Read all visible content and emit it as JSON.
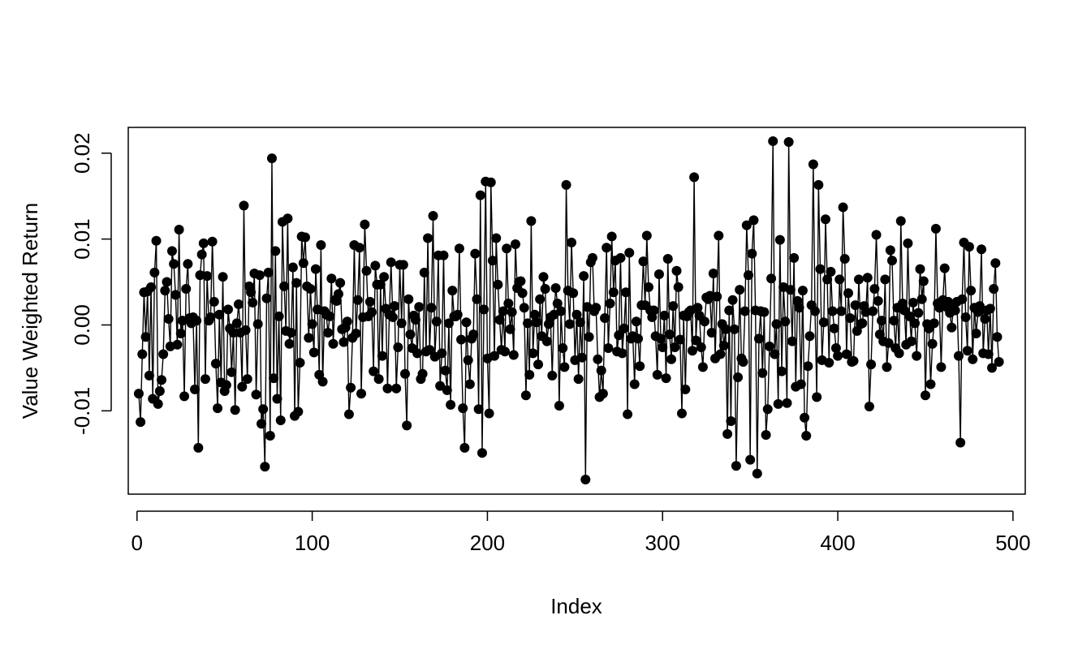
{
  "chart_data": {
    "type": "line",
    "style": "points-and-lines",
    "title": "",
    "xlabel": "Index",
    "ylabel": "Value Weighted Return",
    "xlim": [
      -5,
      507
    ],
    "ylim": [
      -0.0197,
      0.023
    ],
    "xticks": [
      {
        "value": 0,
        "label": "0"
      },
      {
        "value": 100,
        "label": "100"
      },
      {
        "value": 200,
        "label": "200"
      },
      {
        "value": 300,
        "label": "300"
      },
      {
        "value": 400,
        "label": "400"
      },
      {
        "value": 500,
        "label": "500"
      }
    ],
    "yticks": [
      {
        "value": -0.01,
        "label": "-0.01"
      },
      {
        "value": 0.0,
        "label": "0.00"
      },
      {
        "value": 0.01,
        "label": "0.01"
      },
      {
        "value": 0.02,
        "label": "0.02"
      }
    ],
    "grid": false,
    "legend": "none",
    "n_points": 502,
    "series": [
      {
        "marker": "filled-circle",
        "color": "#000000",
        "values": [
          -0.008,
          -0.0113,
          -0.0034,
          0.0038,
          -0.0014,
          0.0039,
          -0.0059,
          0.0044,
          -0.0086,
          0.0061,
          0.0098,
          -0.0092,
          -0.0077,
          -0.0064,
          -0.0034,
          0.004,
          0.005,
          0.0007,
          -0.0025,
          0.0086,
          0.0071,
          0.0035,
          -0.0023,
          0.0111,
          -0.001,
          0.0005,
          -0.0083,
          0.0042,
          0.0071,
          0.0008,
          0.0002,
          0.0009,
          -0.0075,
          0.0005,
          -0.0143,
          0.0058,
          0.0082,
          0.0095,
          -0.0063,
          0.0057,
          0.0005,
          0.0009,
          0.0097,
          0.0027,
          -0.0045,
          -0.0097,
          0.0012,
          -0.0067,
          0.0056,
          -0.0077,
          -0.007,
          0.0018,
          -0.0004,
          -0.0055,
          -0.0009,
          -0.0099,
          0.0002,
          0.0024,
          -0.0009,
          -0.0072,
          0.0139,
          -0.0006,
          -0.0063,
          0.0045,
          0.0038,
          0.0026,
          0.006,
          -0.0081,
          0.0001,
          0.0058,
          -0.0115,
          -0.0098,
          -0.0165,
          0.0031,
          0.0061,
          -0.0129,
          0.0194,
          -0.0062,
          0.0086,
          -0.0086,
          0.001,
          -0.0111,
          0.012,
          0.0045,
          -0.0007,
          0.0124,
          -0.0022,
          -0.0009,
          0.0067,
          -0.0106,
          0.0049,
          -0.0101,
          -0.0044,
          0.0103,
          0.0072,
          0.0102,
          0.0045,
          -0.0015,
          0.0042,
          0.0001,
          -0.0032,
          0.0065,
          0.0018,
          -0.0058,
          0.0093,
          -0.0066,
          0.0016,
          0.0012,
          -0.0009,
          0.001,
          0.0054,
          -0.0022,
          0.0029,
          0.0028,
          0.0036,
          0.0049,
          -0.0005,
          -0.002,
          -0.0003,
          0.0004,
          -0.0104,
          -0.0073,
          -0.0015,
          0.0093,
          -0.001,
          0.0029,
          0.009,
          -0.008,
          0.0009,
          0.0117,
          0.0063,
          0.001,
          0.0027,
          0.0015,
          -0.0054,
          0.0069,
          0.0047,
          -0.0063,
          0.0047,
          -0.0036,
          0.0056,
          0.0019,
          -0.0074,
          0.0012,
          0.0073,
          0.0009,
          0.0022,
          -0.0074,
          -0.0026,
          0.007,
          0.0002,
          0.007,
          -0.0057,
          -0.0117,
          0.003,
          -0.0011,
          -0.0027,
          0.0011,
          0.0006,
          -0.0033,
          0.0021,
          -0.0063,
          -0.0057,
          0.0061,
          -0.0031,
          0.0101,
          -0.0029,
          0.002,
          0.0127,
          -0.0037,
          0.0004,
          0.0081,
          -0.0071,
          -0.0033,
          0.0081,
          -0.0053,
          -0.0076,
          0.0002,
          -0.0093,
          0.004,
          0.001,
          0.001,
          0.0012,
          0.0089,
          -0.0017,
          -0.0097,
          -0.0143,
          0.0003,
          -0.0041,
          -0.0069,
          -0.0016,
          -0.0011,
          0.0083,
          0.003,
          -0.0098,
          0.0151,
          -0.0149,
          0.0018,
          0.0167,
          -0.0039,
          -0.0103,
          0.0166,
          0.0075,
          -0.0036,
          0.0101,
          0.0047,
          0.0006,
          -0.0029,
          0.0016,
          -0.0031,
          0.0089,
          0.0025,
          -0.0005,
          0.0015,
          -0.0035,
          0.0094,
          0.0043,
          0.005,
          0.0051,
          0.0037,
          0.002,
          -0.0082,
          0.0002,
          -0.0058,
          0.0121,
          -0.0033,
          0.0012,
          0.0003,
          -0.0046,
          0.003,
          -0.0013,
          0.0056,
          0.0042,
          -0.0019,
          0.0001,
          0.0009,
          -0.0059,
          0.0012,
          0.0043,
          0.0025,
          -0.0094,
          0.0016,
          -0.0027,
          -0.0049,
          0.0163,
          0.004,
          0.0001,
          0.0096,
          0.0037,
          -0.0041,
          0.0012,
          -0.0063,
          0.0003,
          -0.0038,
          0.0057,
          -0.018,
          0.0021,
          -0.0014,
          0.0073,
          0.0078,
          0.0016,
          0.002,
          -0.004,
          -0.0084,
          -0.0053,
          -0.008,
          0.0008,
          0.009,
          -0.0027,
          0.0025,
          0.0103,
          0.0038,
          0.0075,
          -0.0031,
          -0.0012,
          0.0078,
          -0.0033,
          -0.0004,
          0.0038,
          -0.0104,
          0.0084,
          -0.0016,
          -0.0013,
          -0.0069,
          0.0004,
          -0.0016,
          -0.0048,
          0.0023,
          0.0074,
          0.0023,
          0.0104,
          0.0044,
          0.0017,
          0.0009,
          0.0017,
          -0.0013,
          -0.0058,
          0.0059,
          -0.0016,
          -0.0026,
          0.0011,
          -0.0062,
          0.0077,
          -0.0011,
          -0.004,
          0.0022,
          -0.0026,
          0.0063,
          0.0044,
          -0.0017,
          -0.0103,
          0.0011,
          -0.0075,
          0.001,
          0.0015,
          0.0017,
          -0.003,
          0.0172,
          -0.0018,
          0.002,
          0.0011,
          -0.0026,
          -0.0049,
          0.0004,
          0.0032,
          0.003,
          0.0034,
          -0.0009,
          0.006,
          -0.0039,
          0.0033,
          0.0104,
          -0.0034,
          0.0001,
          -0.0024,
          -0.0005,
          -0.0127,
          0.0017,
          -0.0112,
          0.0029,
          -0.0005,
          -0.0164,
          -0.0061,
          0.0041,
          -0.0039,
          -0.0043,
          0.0016,
          0.0116,
          0.0058,
          -0.0157,
          0.0083,
          0.0122,
          0.0017,
          -0.0173,
          -0.0016,
          0.0016,
          -0.0056,
          0.0015,
          -0.0128,
          -0.0098,
          -0.0025,
          0.0054,
          0.0214,
          -0.0034,
          0.0001,
          -0.0092,
          0.0099,
          -0.0054,
          0.0044,
          0.0004,
          -0.0091,
          0.0213,
          0.0041,
          -0.0019,
          0.0078,
          -0.0072,
          0.0028,
          0.002,
          -0.0069,
          0.004,
          -0.0108,
          -0.0129,
          -0.0048,
          -0.0013,
          0.0023,
          0.0187,
          0.0016,
          -0.0084,
          0.0163,
          0.0065,
          -0.0041,
          0.0003,
          0.0123,
          0.0053,
          -0.0044,
          0.0062,
          0.0016,
          -0.0004,
          -0.0027,
          -0.0036,
          0.0053,
          0.0016,
          0.0137,
          0.0077,
          -0.0034,
          0.0037,
          0.0008,
          -0.0043,
          -0.0042,
          0.0023,
          -0.0007,
          0.0053,
          0.0001,
          0.0002,
          0.0022,
          0.0015,
          0.0055,
          -0.0095,
          -0.0046,
          0.0016,
          0.0042,
          0.0105,
          0.0028,
          -0.0011,
          0.0005,
          -0.0019,
          0.0053,
          -0.0049,
          -0.0021,
          0.0087,
          0.0075,
          0.0005,
          -0.0027,
          0.002,
          -0.0033,
          0.0121,
          0.0025,
          0.0017,
          -0.0023,
          0.0095,
          0.001,
          -0.0019,
          0.0026,
          0.0002,
          -0.0036,
          0.0014,
          0.0065,
          0.003,
          0.0051,
          -0.0082,
          0.0001,
          -0.0004,
          -0.0069,
          -0.0022,
          0.0002,
          0.0112,
          0.0025,
          0.002,
          -0.0049,
          0.0029,
          0.0066,
          0.0021,
          0.0027,
          0.0014,
          -0.0003,
          0.0022,
          0.0017,
          0.0027,
          -0.0036,
          -0.0137,
          0.003,
          0.0096,
          0.0009,
          -0.003,
          0.0091,
          0.004,
          -0.004,
          0.002,
          -0.001,
          0.0015,
          0.0022,
          0.0088,
          -0.0033,
          0.0007,
          0.0017,
          -0.0034,
          0.0019,
          -0.005,
          0.0042,
          0.0072,
          -0.0014,
          -0.0043
        ]
      }
    ]
  }
}
